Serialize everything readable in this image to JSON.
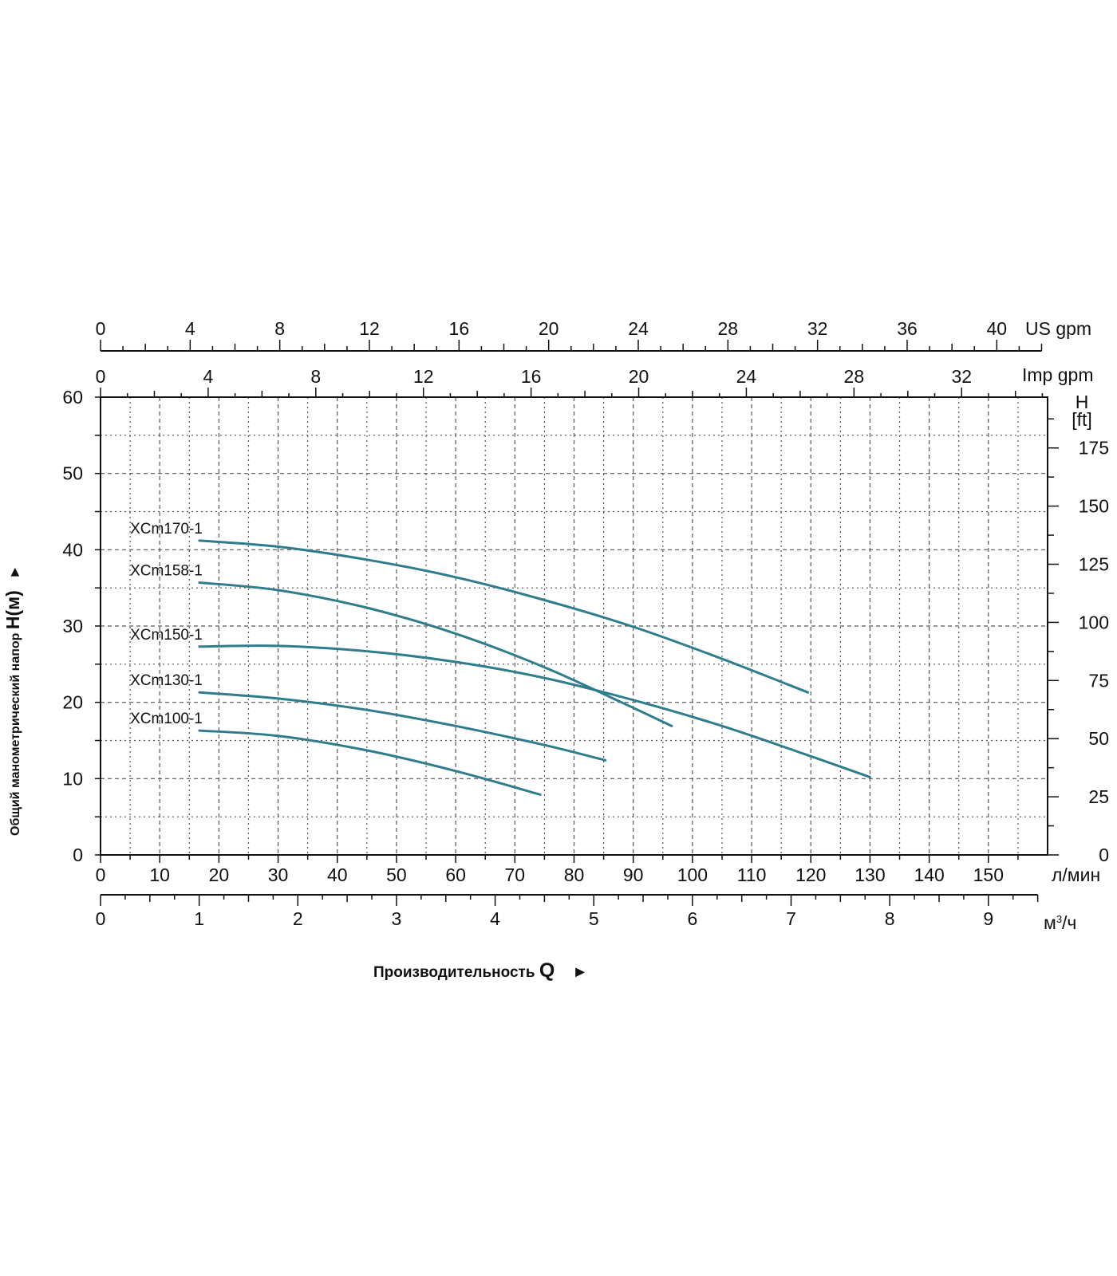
{
  "chart_data": {
    "type": "line",
    "title": "",
    "xlabel": "Производительность",
    "xlabel_symbol": "Q",
    "xlabel_arrow": "►",
    "ylabel": "Общий манометрический напор",
    "ylabel_symbol": "H(м)",
    "ylabel_arrow": "►",
    "x_unit": "л/мин",
    "xlim": [
      0,
      160
    ],
    "ylim": [
      0,
      60
    ],
    "grid": true,
    "y_ticks": [
      "0",
      "10",
      "20",
      "30",
      "40",
      "50",
      "60"
    ],
    "x_ticks_lmin": [
      "0",
      "10",
      "20",
      "30",
      "40",
      "50",
      "60",
      "70",
      "80",
      "90",
      "100",
      "110",
      "120",
      "130",
      "140",
      "150"
    ],
    "axis_m3h": {
      "unit": "м³/ч",
      "unit_prefix": "м",
      "unit_sup": "3",
      "unit_suffix": "/ч",
      "ticks": [
        "0",
        "1",
        "2",
        "3",
        "4",
        "5",
        "6",
        "7",
        "8",
        "9"
      ],
      "max": 9.5
    },
    "axis_us_gpm": {
      "unit": "US gpm",
      "ticks": [
        "0",
        "4",
        "8",
        "12",
        "16",
        "20",
        "24",
        "28",
        "32",
        "36",
        "40"
      ],
      "max": 42
    },
    "axis_imp_gpm": {
      "unit": "Imp gpm",
      "ticks": [
        "0",
        "4",
        "8",
        "12",
        "16",
        "20",
        "24",
        "28",
        "32"
      ],
      "max": 35
    },
    "axis_ft": {
      "unit_top": "H",
      "unit_bottom": "[ft]",
      "ticks": [
        "0",
        "25",
        "50",
        "75",
        "100",
        "125",
        "150",
        "175"
      ]
    },
    "series": [
      {
        "name": "XCm170-1",
        "x": [
          16.7,
          30,
          45,
          60,
          75,
          90,
          105,
          119.5
        ],
        "y": [
          41.2,
          40.4,
          38.7,
          36.4,
          33.4,
          29.9,
          25.7,
          21.3
        ]
      },
      {
        "name": "XCm158-1",
        "x": [
          16.7,
          30,
          45,
          60,
          75,
          88,
          96.5
        ],
        "y": [
          35.7,
          34.7,
          32.4,
          29.0,
          24.6,
          20.0,
          16.9
        ]
      },
      {
        "name": "XCm150-1",
        "x": [
          16.7,
          30,
          45,
          60,
          75,
          90,
          105,
          119,
          130
        ],
        "y": [
          27.3,
          27.4,
          26.7,
          25.3,
          23.2,
          20.3,
          16.9,
          13.2,
          10.2
        ]
      },
      {
        "name": "XCm130-1",
        "x": [
          16.7,
          30,
          45,
          60,
          75,
          85.3
        ],
        "y": [
          21.3,
          20.5,
          19.0,
          16.9,
          14.4,
          12.4
        ]
      },
      {
        "name": "XCm100-1",
        "x": [
          16.7,
          30,
          45,
          60,
          74.3
        ],
        "y": [
          16.3,
          15.6,
          13.7,
          11.0,
          7.9
        ]
      }
    ],
    "line_color": "#2f7d8c",
    "grid_color": "#555555",
    "frame_color": "#111111"
  }
}
